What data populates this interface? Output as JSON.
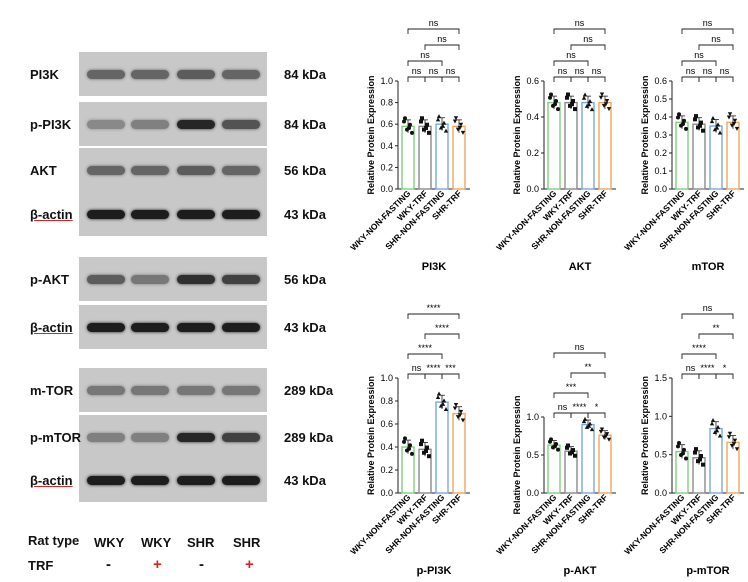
{
  "blot_rows": [
    {
      "label": "PI3K",
      "kda": "84 kDa",
      "intensity": [
        0.55,
        0.55,
        0.6,
        0.55
      ]
    },
    {
      "label": "p-PI3K",
      "kda": "84 kDa",
      "intensity": [
        0.35,
        0.4,
        0.9,
        0.65
      ]
    },
    {
      "label": "AKT",
      "kda": "56 kDa",
      "intensity": [
        0.55,
        0.55,
        0.6,
        0.55
      ]
    },
    {
      "label": "β-actin",
      "kda": "43 kDa",
      "intensity": [
        0.95,
        0.95,
        0.95,
        0.95
      ]
    },
    {
      "label": "p-AKT",
      "kda": "56 kDa",
      "intensity": [
        0.6,
        0.45,
        0.85,
        0.75
      ]
    },
    {
      "label": "β-actin",
      "kda": "43 kDa",
      "intensity": [
        0.95,
        0.95,
        0.95,
        0.95
      ]
    },
    {
      "label": "m-TOR",
      "kda": "289 kDa",
      "intensity": [
        0.45,
        0.45,
        0.45,
        0.45
      ]
    },
    {
      "label": "p-mTOR",
      "kda": "289 kDa",
      "intensity": [
        0.4,
        0.4,
        0.9,
        0.75
      ]
    },
    {
      "label": "β-actin",
      "kda": "43 kDa",
      "intensity": [
        0.95,
        0.95,
        0.95,
        0.95
      ]
    }
  ],
  "bottom": {
    "rat_type_label": "Rat type",
    "trf_label": "TRF",
    "rat_types": [
      "WKY",
      "WKY",
      "SHR",
      "SHR"
    ],
    "trf_signs": [
      "-",
      "+",
      "-",
      "+"
    ],
    "plus_color": "#e02020"
  },
  "colors": {
    "WKY-NON-FASTING": "#7fcf7f",
    "WKY-TRF": "#8a8a8a",
    "SHR-NON-FASTING": "#7aa8e0",
    "SHR-TRF": "#f2a65a"
  },
  "chart_data": [
    {
      "type": "bar",
      "title": "PI3K",
      "ylabel": "Relative Protein Expression",
      "categories": [
        "WKY-NON-FASTING",
        "WKY-TRF",
        "SHR-NON-FASTING",
        "SHR-TRF"
      ],
      "values": [
        0.58,
        0.58,
        0.6,
        0.58
      ],
      "ylim": [
        0,
        1.0
      ],
      "yticks": [
        "0.0",
        "0.2",
        "0.4",
        "0.6",
        "0.8",
        "1.0"
      ],
      "significance": [
        [
          "1-2",
          "ns"
        ],
        [
          "2-3",
          "ns"
        ],
        [
          "3-4",
          "ns"
        ],
        [
          "1-3",
          "ns"
        ],
        [
          "2-4",
          "ns"
        ],
        [
          "1-4",
          "ns"
        ]
      ]
    },
    {
      "type": "bar",
      "title": "AKT",
      "ylabel": "Relative Protein Expression",
      "categories": [
        "WKY-NON-FASTING",
        "WKY-TRF",
        "SHR-NON-FASTING",
        "SHR-TRF"
      ],
      "values": [
        0.48,
        0.48,
        0.48,
        0.48
      ],
      "ylim": [
        0,
        0.6
      ],
      "yticks": [
        "0.0",
        "0.2",
        "0.4",
        "0.6"
      ],
      "significance": [
        [
          "1-2",
          "ns"
        ],
        [
          "2-3",
          "ns"
        ],
        [
          "3-4",
          "ns"
        ],
        [
          "1-3",
          "ns"
        ],
        [
          "2-4",
          "ns"
        ],
        [
          "1-4",
          "ns"
        ]
      ]
    },
    {
      "type": "bar",
      "title": "mTOR",
      "ylabel": "Relative Protein Expression",
      "categories": [
        "WKY-NON-FASTING",
        "WKY-TRF",
        "SHR-NON-FASTING",
        "SHR-TRF"
      ],
      "values": [
        0.37,
        0.36,
        0.35,
        0.37
      ],
      "ylim": [
        0,
        0.6
      ],
      "yticks": [
        "0.0",
        "0.1",
        "0.2",
        "0.3",
        "0.4",
        "0.5",
        "0.6"
      ],
      "significance": [
        [
          "1-2",
          "ns"
        ],
        [
          "2-3",
          "ns"
        ],
        [
          "3-4",
          "ns"
        ],
        [
          "1-3",
          "ns"
        ],
        [
          "2-4",
          "ns"
        ],
        [
          "1-4",
          "ns"
        ]
      ]
    },
    {
      "type": "bar",
      "title": "p-PI3K",
      "ylabel": "Relative Protein Expression",
      "categories": [
        "WKY-NON-FASTING",
        "WKY-TRF",
        "SHR-NON-FASTING",
        "SHR-TRF"
      ],
      "values": [
        0.4,
        0.38,
        0.79,
        0.69
      ],
      "ylim": [
        0,
        1.0
      ],
      "yticks": [
        "0.0",
        "0.2",
        "0.4",
        "0.6",
        "0.8",
        "1.0"
      ],
      "significance": [
        [
          "1-2",
          "ns"
        ],
        [
          "3-4",
          "***"
        ],
        [
          "2-3",
          "****"
        ],
        [
          "1-3",
          "****"
        ],
        [
          "2-4",
          "****"
        ],
        [
          "1-4",
          "****"
        ]
      ]
    },
    {
      "type": "bar",
      "title": "p-AKT",
      "ylabel": "Relative Protein Expression",
      "categories": [
        "WKY-NON-FASTING",
        "WKY-TRF",
        "SHR-NON-FASTING",
        "SHR-TRF"
      ],
      "values": [
        0.63,
        0.55,
        0.9,
        0.76
      ],
      "ylim": [
        0,
        1.0
      ],
      "yticks": [
        "0.0",
        "0.5",
        "1.0"
      ],
      "significance": [
        [
          "1-2",
          "ns"
        ],
        [
          "3-4",
          "*"
        ],
        [
          "2-3",
          "****"
        ],
        [
          "1-3",
          "***"
        ],
        [
          "2-4",
          "**"
        ],
        [
          "1-4",
          "ns"
        ]
      ]
    },
    {
      "type": "bar",
      "title": "p-mTOR",
      "ylabel": "Relative Protein Expression",
      "categories": [
        "WKY-NON-FASTING",
        "WKY-TRF",
        "SHR-NON-FASTING",
        "SHR-TRF"
      ],
      "values": [
        0.54,
        0.46,
        0.84,
        0.66
      ],
      "ylim": [
        0,
        1.5
      ],
      "yticks": [
        "0.0",
        "0.5",
        "1.0",
        "1.5"
      ],
      "significance": [
        [
          "1-2",
          "ns"
        ],
        [
          "3-4",
          "*"
        ],
        [
          "2-3",
          "****"
        ],
        [
          "1-3",
          "****"
        ],
        [
          "2-4",
          "**"
        ],
        [
          "1-4",
          "ns"
        ]
      ]
    }
  ]
}
